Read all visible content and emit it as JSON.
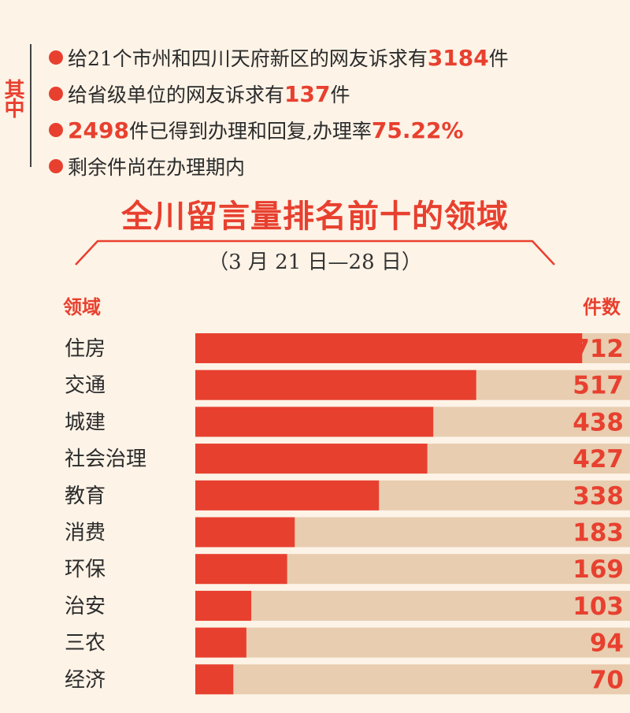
{
  "side_label": "其中",
  "summary": [
    {
      "before": "给21个市州和四川天府新区的网友诉求有",
      "num": "3184",
      "after": "件"
    },
    {
      "before": "给省级单位的网友诉求有",
      "num": "137",
      "after": "件"
    },
    {
      "before": "",
      "num": "2498",
      "after": "件已得到办理和回复,办理率",
      "num2": "75.22%"
    },
    {
      "before": "剩余件尚在办理期内",
      "num": "",
      "after": ""
    }
  ],
  "chart_data": {
    "type": "bar",
    "orientation": "horizontal",
    "title": "全川留言量排名前十的领域",
    "subtitle": "（3 月 21 日—28 日）",
    "category_header": "领域",
    "value_header": "件数",
    "categories": [
      "住房",
      "交通",
      "城建",
      "社会治理",
      "教育",
      "消费",
      "环保",
      "治安",
      "三农",
      "经济"
    ],
    "values": [
      712,
      517,
      438,
      427,
      338,
      183,
      169,
      103,
      94,
      70
    ],
    "xlim": [
      0,
      800
    ],
    "bar_color": "#e8402f",
    "track_color": "#e8cdb0"
  }
}
